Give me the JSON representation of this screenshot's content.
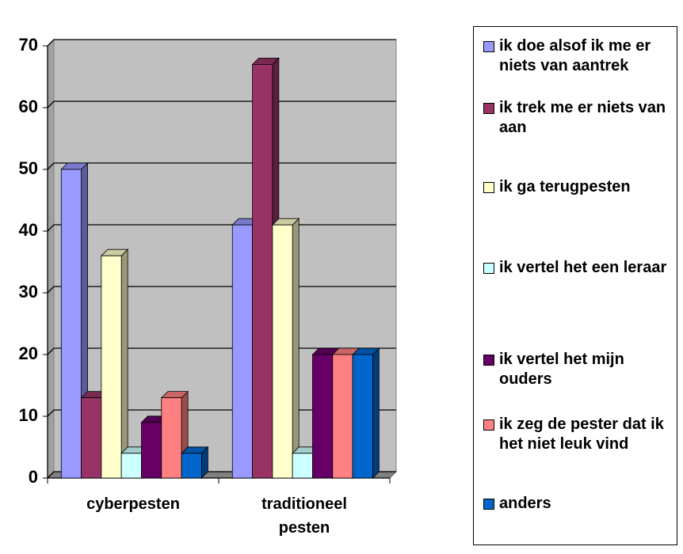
{
  "chart_data": {
    "type": "bar3d",
    "categories": [
      "cyberpesten",
      "traditioneel pesten"
    ],
    "series": [
      {
        "name": "ik doe alsof ik me er niets van aantrek",
        "color": "#9999FF",
        "values": [
          50,
          41
        ]
      },
      {
        "name": "ik trek me er niets van aan",
        "color": "#993366",
        "values": [
          13,
          67
        ]
      },
      {
        "name": "ik ga terugpesten",
        "color": "#FFFFCC",
        "values": [
          36,
          41
        ]
      },
      {
        "name": "ik vertel het een leraar",
        "color": "#CCFFFF",
        "values": [
          4,
          4
        ]
      },
      {
        "name": "ik vertel het mijn ouders",
        "color": "#660066",
        "values": [
          9,
          20
        ]
      },
      {
        "name": "ik zeg de pester dat ik het niet leuk vind",
        "color": "#FF8080",
        "values": [
          13,
          20
        ]
      },
      {
        "name": "anders",
        "color": "#0066CC",
        "values": [
          4,
          20
        ]
      }
    ],
    "ylim": [
      0,
      70
    ],
    "yticks": [
      0,
      10,
      20,
      30,
      40,
      50,
      60,
      70
    ],
    "grid": true,
    "legend": "right"
  }
}
